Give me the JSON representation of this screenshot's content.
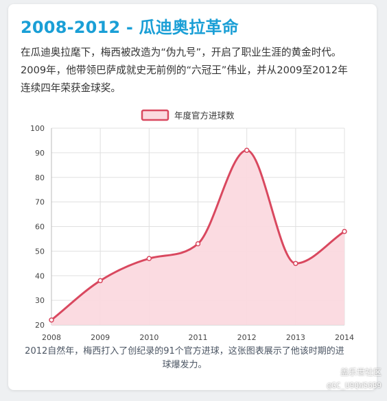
{
  "title": "2008-2012 - 瓜迪奥拉革命",
  "description": "在瓜迪奥拉麾下，梅西被改造为“伪九号”，开启了职业生涯的黄金时代。2009年，他带领巴萨成就史无前例的“六冠王”伟业，并从2009至2012年连续四年荣获金球奖。",
  "caption": "2012自然年，梅西打入了创纪录的91个官方进球，这张图表展示了他该时期的进球爆发力。",
  "watermark": {
    "line1": "盖乐世社区",
    "line2": "@GC_U9QWS6B9"
  },
  "chart_data": {
    "type": "area",
    "x": [
      "2008",
      "2009",
      "2010",
      "2011",
      "2012",
      "2013",
      "2014"
    ],
    "series": [
      {
        "name": "年度官方进球数",
        "values": [
          22,
          38,
          47,
          53,
          91,
          45,
          58
        ]
      }
    ],
    "ylim": [
      20,
      100
    ],
    "yticks": [
      20,
      30,
      40,
      50,
      60,
      70,
      80,
      90,
      100
    ],
    "grid": true,
    "legend": "top-center",
    "colors": {
      "line": "#d9485f",
      "fill": "#fbd9df",
      "grid": "#e0e0e0"
    }
  }
}
